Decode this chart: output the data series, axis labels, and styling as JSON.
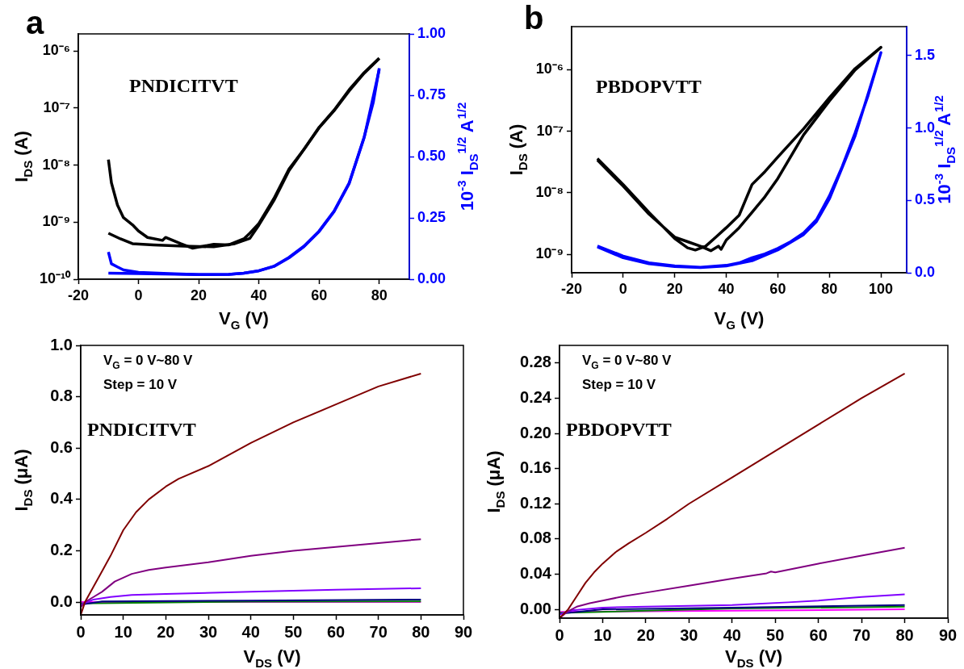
{
  "chart_data": [
    {
      "type": "line",
      "title": "a",
      "xlabel": "V$_{G}$ (V)",
      "ylabel": "I$_{DS}$ (A)",
      "y2label": "10$^{-3}$ I$_{DS}$$^{1/2}$ A$^{1/2}$",
      "annotations": [
        "PNDICITVT"
      ],
      "log": "y",
      "grid": false,
      "marker": "none",
      "xlim": [
        -20,
        90
      ],
      "xticks": [
        -20,
        0,
        20,
        40,
        60,
        80
      ],
      "ylim": [
        1e-10,
        2e-06
      ],
      "yticks": [
        {
          "value": 1e-10,
          "label": "10⁻¹⁰"
        },
        {
          "value": 1e-09,
          "label": "10⁻⁹"
        },
        {
          "value": 1e-08,
          "label": "10⁻⁸"
        },
        {
          "value": 1e-07,
          "label": "10⁻⁷"
        },
        {
          "value": 1e-06,
          "label": "10⁻⁶"
        }
      ],
      "y2lim": [
        0,
        1
      ],
      "y2ticks": [
        {
          "value": 0,
          "label": "0.00"
        },
        0.25,
        {
          "value": 0.5,
          "label": "0.50"
        },
        0.75,
        {
          "value": 1,
          "label": "1.00"
        }
      ],
      "series": [
        {
          "color": "#000000",
          "x": [
            -10,
            -9,
            -7,
            -5,
            -2,
            0,
            3,
            8,
            9,
            14,
            18,
            25,
            30,
            35,
            37,
            40,
            45,
            50,
            55,
            60,
            65,
            70,
            75,
            80
          ],
          "values": [
            1.25e-08,
            4.9e-09,
            2e-09,
            1.2e-09,
            9e-10,
            7e-10,
            5.4e-10,
            4.8e-10,
            5.4e-10,
            4.2e-10,
            3.5e-10,
            4.1e-10,
            4e-10,
            5.1e-10,
            6.4e-10,
            9.5e-10,
            2.6e-09,
            8.5e-09,
            1.9e-08,
            4.6e-08,
            9.2e-08,
            2.1e-07,
            4.2e-07,
            7.5e-07
          ]
        },
        {
          "color": "#000000",
          "x": [
            -10,
            -6,
            -2,
            5,
            15,
            25,
            32,
            37,
            40,
            45,
            50,
            55,
            60,
            65,
            70,
            75,
            80
          ],
          "values": [
            6.4e-10,
            5.1e-10,
            4.2e-10,
            4e-10,
            3.8e-10,
            3.7e-10,
            4.2e-10,
            5.2e-10,
            8.9e-10,
            2.4e-09,
            8e-09,
            1.9e-08,
            4.5e-08,
            9e-08,
            2e-07,
            4.1e-07,
            7.4e-07
          ]
        },
        {
          "color": "#0000ff",
          "axis": "y2",
          "x": [
            -10,
            -9,
            -7,
            -5,
            0,
            10,
            20,
            30,
            35,
            40,
            45,
            50,
            55,
            60,
            65,
            70,
            75,
            78,
            80
          ],
          "values": [
            0.111,
            0.063,
            0.05,
            0.038,
            0.028,
            0.023,
            0.019,
            0.02,
            0.025,
            0.035,
            0.053,
            0.089,
            0.135,
            0.196,
            0.278,
            0.392,
            0.58,
            0.72,
            0.86
          ]
        },
        {
          "color": "#0000ff",
          "axis": "y2",
          "x": [
            -10,
            0,
            20,
            30,
            35,
            40,
            45,
            50,
            55,
            60,
            65,
            70,
            75,
            80
          ],
          "values": [
            0.025,
            0.023,
            0.019,
            0.02,
            0.025,
            0.034,
            0.052,
            0.087,
            0.133,
            0.194,
            0.276,
            0.39,
            0.578,
            0.855
          ]
        }
      ]
    },
    {
      "type": "line",
      "title": "b",
      "xlabel": "V$_{G}$ (V)",
      "ylabel": "I$_{DS}$ (A)",
      "y2label": "10$^{-3}$ I$_{DS}$$^{1/2}$ A$^{1/2}$",
      "annotations": [
        "PBDOPVTT"
      ],
      "log": "y",
      "grid": false,
      "marker": "none",
      "xlim": [
        -20,
        110
      ],
      "xticks": [
        -20,
        0,
        20,
        40,
        60,
        80,
        100
      ],
      "ylim": [
        5e-10,
        5e-06
      ],
      "yticks": [
        {
          "value": 1e-09,
          "label": "10⁻⁹"
        },
        {
          "value": 1e-08,
          "label": "10⁻⁸"
        },
        {
          "value": 1e-07,
          "label": "10⁻⁷"
        },
        {
          "value": 1e-06,
          "label": "10⁻⁶"
        }
      ],
      "y2lim": [
        0,
        1.7
      ],
      "y2ticks": [
        {
          "value": 0,
          "label": "0.0"
        },
        0.5,
        {
          "value": 1,
          "label": "1.0"
        },
        1.5
      ],
      "series": [
        {
          "color": "#000000",
          "x": [
            -10,
            0,
            10,
            20,
            25,
            28,
            32,
            36,
            40,
            45,
            50,
            55,
            60,
            70,
            80,
            90,
            100,
            90,
            80,
            70,
            60,
            55,
            50,
            45,
            40,
            38,
            37,
            34,
            30,
            25,
            20,
            10,
            0,
            -10
          ],
          "values": [
            3.6e-08,
            1.36e-08,
            4.8e-09,
            1.8e-09,
            1.27e-09,
            1.17e-09,
            1.35e-09,
            1.9e-09,
            2.7e-09,
            4.3e-09,
            1.36e-08,
            2.2e-08,
            3.8e-08,
            1.09e-07,
            3.5e-07,
            1.04e-06,
            2.3e-06,
            9.9e-07,
            3.1e-07,
            8.7e-08,
            1.7e-08,
            8.6e-09,
            4.8e-09,
            2.7e-09,
            1.7e-09,
            1.2e-09,
            1.35e-09,
            1.14e-09,
            1.35e-09,
            1.6e-09,
            1.9e-09,
            4.5e-09,
            1.28e-08,
            3.4e-08
          ]
        },
        {
          "color": "#0000ff",
          "axis": "y2",
          "x": [
            -10,
            0,
            10,
            20,
            30,
            40,
            45,
            50,
            55,
            60,
            65,
            70,
            75,
            80,
            85,
            90,
            95,
            100,
            90,
            80,
            75,
            70,
            60,
            50,
            40,
            30,
            20,
            10,
            0,
            -10
          ],
          "values": [
            0.185,
            0.115,
            0.068,
            0.047,
            0.038,
            0.051,
            0.068,
            0.104,
            0.13,
            0.168,
            0.215,
            0.275,
            0.366,
            0.53,
            0.733,
            0.967,
            1.223,
            1.52,
            0.946,
            0.51,
            0.354,
            0.264,
            0.158,
            0.083,
            0.047,
            0.036,
            0.043,
            0.062,
            0.104,
            0.179
          ]
        }
      ]
    },
    {
      "type": "line",
      "xlabel": "V$_{DS}$ (V)",
      "ylabel": "I$_{DS}$ (μA)",
      "annotations": [
        "V$_{G}$ = 0 V~80 V",
        "Step = 10 V",
        "PNDICITVT"
      ],
      "grid": false,
      "marker": "none",
      "xlim": [
        0,
        90
      ],
      "xticks": [
        0,
        10,
        20,
        30,
        40,
        50,
        60,
        70,
        80,
        90
      ],
      "ylim": [
        -0.05,
        1.0
      ],
      "yticks": [
        {
          "value": 0,
          "label": "0.0"
        },
        0.2,
        0.4,
        0.6,
        0.8,
        {
          "value": 1,
          "label": "1.0"
        }
      ],
      "series": [
        {
          "color": "#800000",
          "x": [
            0,
            1,
            3,
            5,
            7,
            10,
            13,
            16,
            20,
            23,
            30,
            40,
            50,
            60,
            70,
            80
          ],
          "values": [
            -0.05,
            0,
            0.06,
            0.12,
            0.18,
            0.28,
            0.35,
            0.4,
            0.45,
            0.48,
            0.53,
            0.62,
            0.7,
            0.77,
            0.84,
            0.89
          ]
        },
        {
          "color": "#800080",
          "x": [
            0,
            1,
            3,
            5,
            8,
            12,
            16,
            20,
            30,
            40,
            50,
            60,
            70,
            80
          ],
          "values": [
            -0.02,
            0,
            0.02,
            0.04,
            0.08,
            0.11,
            0.125,
            0.135,
            0.155,
            0.18,
            0.2,
            0.215,
            0.23,
            0.245
          ]
        },
        {
          "color": "#8000ff",
          "x": [
            0,
            3,
            7,
            12,
            20,
            40,
            60,
            80
          ],
          "values": [
            -0.01,
            0.01,
            0.02,
            0.028,
            0.032,
            0.04,
            0.048,
            0.054
          ]
        },
        {
          "color": "#000080",
          "x": [
            0,
            5,
            40,
            80
          ],
          "values": [
            -0.01,
            0.003,
            0.006,
            0.01
          ]
        },
        {
          "color": "#008000",
          "x": [
            0,
            40,
            80
          ],
          "values": [
            -0.005,
            0.002,
            0.003
          ]
        },
        {
          "color": "#ff00ff",
          "x": [
            0,
            80
          ],
          "values": [
            0,
            0
          ]
        }
      ]
    },
    {
      "type": "line",
      "xlabel": "V$_{DS}$ (V)",
      "ylabel": "I$_{DS}$ (μA)",
      "annotations": [
        "V$_{G}$ = 0 V~80 V",
        "Step = 10 V",
        "PBDOPVTT"
      ],
      "grid": false,
      "marker": "none",
      "xlim": [
        0,
        90
      ],
      "xticks": [
        0,
        10,
        20,
        30,
        40,
        50,
        60,
        70,
        80,
        90
      ],
      "ylim": [
        -0.01,
        0.3
      ],
      "yticks": [
        {
          "value": 0,
          "label": "0.00"
        },
        0.04,
        0.08,
        0.12,
        0.16,
        {
          "value": 0.2,
          "label": "0.20"
        },
        0.24,
        0.28
      ],
      "series": [
        {
          "color": "#800000",
          "x": [
            0,
            2,
            4,
            6,
            8,
            10,
            13,
            16,
            20,
            25,
            30,
            40,
            50,
            60,
            70,
            80
          ],
          "values": [
            -0.01,
            0,
            0.015,
            0.03,
            0.042,
            0.052,
            0.065,
            0.075,
            0.087,
            0.103,
            0.12,
            0.15,
            0.18,
            0.21,
            0.24,
            0.268
          ]
        },
        {
          "color": "#800080",
          "x": [
            0,
            2,
            4,
            7,
            10,
            15,
            20,
            30,
            40,
            48,
            49,
            50,
            60,
            70,
            80
          ],
          "values": [
            -0.01,
            -0.002,
            0.003,
            0.007,
            0.01,
            0.015,
            0.019,
            0.027,
            0.035,
            0.041,
            0.043,
            0.042,
            0.052,
            0.061,
            0.07
          ]
        },
        {
          "color": "#8000ff",
          "x": [
            0,
            3,
            10,
            20,
            40,
            53,
            60,
            70,
            80
          ],
          "values": [
            -0.006,
            -0.001,
            0.002,
            0.003,
            0.005,
            0.008,
            0.01,
            0.014,
            0.017
          ]
        },
        {
          "color": "#000080",
          "x": [
            0,
            10,
            40,
            80
          ],
          "values": [
            -0.005,
            0,
            0.002,
            0.005
          ]
        },
        {
          "color": "#008000",
          "x": [
            0,
            40,
            80
          ],
          "values": [
            -0.004,
            0.001,
            0.003
          ]
        },
        {
          "color": "#ff00ff",
          "x": [
            0,
            80
          ],
          "values": [
            -0.003,
            0
          ]
        }
      ]
    }
  ]
}
